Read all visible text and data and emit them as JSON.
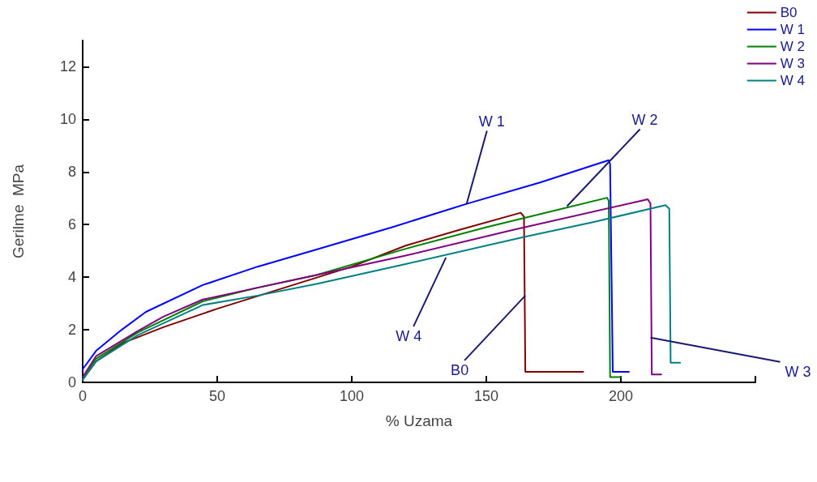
{
  "chart_data": {
    "type": "line",
    "xlabel": "% Uzama",
    "ylabel": "Gerilme  MPa",
    "xlim": [
      0,
      250
    ],
    "xticks": [
      0,
      50,
      100,
      150,
      200,
      {
        "value": 250,
        "label": null
      }
    ],
    "ylim": [
      0,
      13
    ],
    "yticks": [
      0,
      2,
      4,
      6,
      8,
      10,
      12
    ],
    "grid": false,
    "legend": "top right",
    "marker": "none",
    "line_style": "solid",
    "series": [
      {
        "name": "B0",
        "color": "#800000",
        "x": [
          0,
          5,
          15,
          30,
          50,
          75,
          100,
          120,
          140,
          162.8,
          164,
          164.5,
          186
        ],
        "values": [
          0.1,
          0.8,
          1.5,
          2.1,
          2.8,
          3.6,
          4.4,
          5.2,
          5.8,
          6.45,
          6.3,
          0.4,
          0.4
        ]
      },
      {
        "name": "W 1",
        "color": "#0000ff",
        "x": [
          0,
          5,
          14.5,
          23.5,
          44.6,
          65,
          86.9,
          115,
          142.7,
          170,
          195.5,
          196,
          197,
          203
        ],
        "values": [
          0.5,
          1.2,
          2.0,
          2.68,
          3.7,
          4.4,
          5.05,
          5.9,
          6.79,
          7.6,
          8.45,
          8.3,
          0.4,
          0.4
        ]
      },
      {
        "name": "W 2",
        "color": "#008000",
        "x": [
          0,
          5,
          20.5,
          44.6,
          65,
          86.9,
          120,
          150,
          194.9,
          195.5,
          196,
          200
        ],
        "values": [
          0.1,
          0.9,
          1.9,
          3.08,
          3.6,
          4.08,
          5.08,
          5.9,
          7.02,
          6.9,
          0.2,
          0.2
        ]
      },
      {
        "name": "W 3",
        "color": "#800080",
        "x": [
          0,
          5,
          20.5,
          30,
          44.6,
          65,
          86.9,
          120,
          160,
          210,
          211,
          211.5,
          215
        ],
        "values": [
          0.2,
          1.0,
          1.95,
          2.5,
          3.15,
          3.6,
          4.08,
          4.82,
          5.8,
          6.96,
          6.8,
          0.3,
          0.3
        ]
      },
      {
        "name": "W 4",
        "color": "#008080",
        "x": [
          0,
          5,
          20.5,
          44.6,
          65,
          86.9,
          120,
          164.4,
          190,
          216.6,
          218,
          218.5,
          222
        ],
        "values": [
          0.1,
          0.8,
          1.8,
          2.94,
          3.3,
          3.74,
          4.5,
          5.54,
          6.1,
          6.74,
          6.6,
          0.75,
          0.75
        ]
      }
    ],
    "annotations": [
      {
        "text": "W 1",
        "x": 142.7,
        "y": 6.79
      },
      {
        "text": "W 2",
        "x": 180,
        "y": 6.7
      },
      {
        "text": "W 4",
        "x": 135,
        "y": 4.75
      },
      {
        "text": "B0",
        "x": 164.5,
        "y": 3.3
      },
      {
        "text": "W 3",
        "x": 211,
        "y": 1.7
      }
    ]
  }
}
